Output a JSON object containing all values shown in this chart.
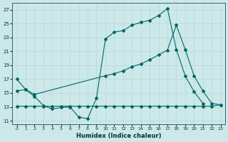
{
  "bg_color": "#cce8e8",
  "grid_color": "#b8d8d8",
  "line_color": "#006666",
  "xlabel": "Humidex (Indice chaleur)",
  "xlim": [
    -0.5,
    23.5
  ],
  "ylim": [
    10.5,
    28.0
  ],
  "xticks": [
    0,
    1,
    2,
    3,
    4,
    5,
    6,
    7,
    8,
    9,
    10,
    11,
    12,
    13,
    14,
    15,
    16,
    17,
    18,
    19,
    20,
    21,
    22,
    23
  ],
  "yticks": [
    11,
    13,
    15,
    17,
    19,
    21,
    23,
    25,
    27
  ],
  "line1_x": [
    0,
    1,
    2,
    3,
    4,
    5,
    6,
    7,
    8,
    9,
    10,
    11,
    12,
    13,
    14,
    15,
    16,
    17,
    18,
    19,
    20,
    21
  ],
  "line1_y": [
    17.0,
    15.5,
    14.5,
    13.2,
    12.7,
    12.9,
    13.0,
    11.5,
    11.3,
    14.3,
    22.8,
    23.8,
    24.0,
    24.8,
    25.2,
    25.5,
    26.2,
    27.2,
    21.3,
    17.5,
    15.2,
    13.5
  ],
  "line2_x": [
    0,
    1,
    2,
    3,
    4,
    5,
    6,
    7,
    8,
    9,
    10,
    11,
    12,
    13,
    14,
    15,
    16,
    17,
    18,
    19,
    20,
    21,
    22,
    23
  ],
  "line2_y": [
    13.1,
    13.1,
    13.1,
    13.1,
    13.1,
    13.1,
    13.1,
    13.1,
    13.1,
    13.1,
    13.1,
    13.1,
    13.1,
    13.1,
    13.1,
    13.1,
    13.1,
    13.1,
    13.1,
    13.1,
    13.1,
    13.1,
    13.1,
    13.3
  ],
  "line3_x": [
    0,
    1,
    2,
    10,
    11,
    12,
    13,
    14,
    15,
    16,
    17,
    18,
    19,
    20,
    21,
    22,
    23
  ],
  "line3_y": [
    15.3,
    15.5,
    14.8,
    17.5,
    17.8,
    18.2,
    18.8,
    19.2,
    19.8,
    20.5,
    21.2,
    24.8,
    21.3,
    17.5,
    15.3,
    13.5,
    13.3
  ]
}
